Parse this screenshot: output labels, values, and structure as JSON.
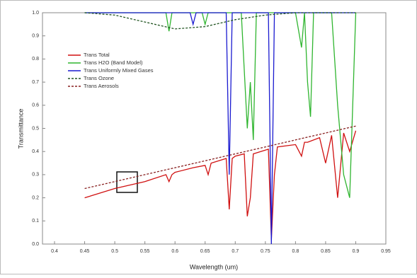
{
  "chart_data": {
    "type": "line",
    "x_label": "Wavelength (um)",
    "y_label": "Transmittance",
    "xlim": [
      0.38,
      0.95
    ],
    "ylim": [
      0,
      1
    ],
    "xticks": [
      0.4,
      0.45,
      0.5,
      0.55,
      0.6,
      0.65,
      0.7,
      0.75,
      0.8,
      0.85,
      0.9,
      0.95
    ],
    "yticks": [
      {
        "value": 0,
        "label": "0.0"
      },
      0.1,
      0.2,
      0.3,
      0.4,
      0.5,
      0.6,
      0.7,
      0.8,
      0.9,
      {
        "value": 1,
        "label": "1.0"
      }
    ],
    "series": [
      {
        "name": "Trans Total",
        "color": "#d01010",
        "x": [
          0.45,
          0.5,
          0.55,
          0.585,
          0.59,
          0.595,
          0.6,
          0.63,
          0.65,
          0.655,
          0.66,
          0.685,
          0.69,
          0.695,
          0.7,
          0.715,
          0.72,
          0.725,
          0.73,
          0.755,
          0.76,
          0.765,
          0.77,
          0.8,
          0.81,
          0.815,
          0.82,
          0.84,
          0.85,
          0.86,
          0.87,
          0.88,
          0.89,
          0.9
        ],
        "values": [
          0.2,
          0.24,
          0.27,
          0.3,
          0.27,
          0.3,
          0.31,
          0.33,
          0.34,
          0.3,
          0.35,
          0.37,
          0.15,
          0.37,
          0.38,
          0.39,
          0.12,
          0.2,
          0.39,
          0.41,
          0.02,
          0.3,
          0.42,
          0.43,
          0.38,
          0.44,
          0.44,
          0.46,
          0.35,
          0.47,
          0.2,
          0.48,
          0.4,
          0.49
        ]
      },
      {
        "name": "Trans H2O (Band Model)",
        "color": "#2fb52f",
        "x": [
          0.45,
          0.55,
          0.585,
          0.59,
          0.595,
          0.645,
          0.65,
          0.655,
          0.71,
          0.72,
          0.725,
          0.73,
          0.735,
          0.8,
          0.81,
          0.815,
          0.82,
          0.825,
          0.83,
          0.86,
          0.87,
          0.88,
          0.89,
          0.9
        ],
        "values": [
          1,
          1,
          1,
          0.92,
          1,
          1,
          0.95,
          1,
          1,
          0.5,
          0.7,
          0.45,
          1,
          1,
          0.85,
          1,
          0.7,
          0.55,
          1,
          1,
          0.6,
          0.3,
          0.2,
          1
        ]
      },
      {
        "name": "Trans Uniformly Mixed Gases",
        "color": "#1a1ad0",
        "x": [
          0.45,
          0.625,
          0.63,
          0.635,
          0.685,
          0.69,
          0.695,
          0.755,
          0.76,
          0.765,
          0.9
        ],
        "values": [
          1,
          1,
          0.95,
          1,
          1,
          0.3,
          1,
          1,
          0,
          1,
          1
        ]
      },
      {
        "name": "Trans Ozone",
        "color": "#225522",
        "dash": "3,2",
        "x": [
          0.45,
          0.5,
          0.55,
          0.6,
          0.65,
          0.7,
          0.75,
          0.8,
          0.9
        ],
        "values": [
          1,
          0.99,
          0.96,
          0.93,
          0.94,
          0.97,
          0.99,
          1,
          1
        ]
      },
      {
        "name": "Trans Aerosols",
        "color": "#882020",
        "dash": "3,2",
        "x": [
          0.45,
          0.5,
          0.55,
          0.6,
          0.65,
          0.7,
          0.75,
          0.8,
          0.85,
          0.9
        ],
        "values": [
          0.24,
          0.27,
          0.3,
          0.33,
          0.36,
          0.39,
          0.42,
          0.45,
          0.48,
          0.51
        ]
      }
    ]
  }
}
